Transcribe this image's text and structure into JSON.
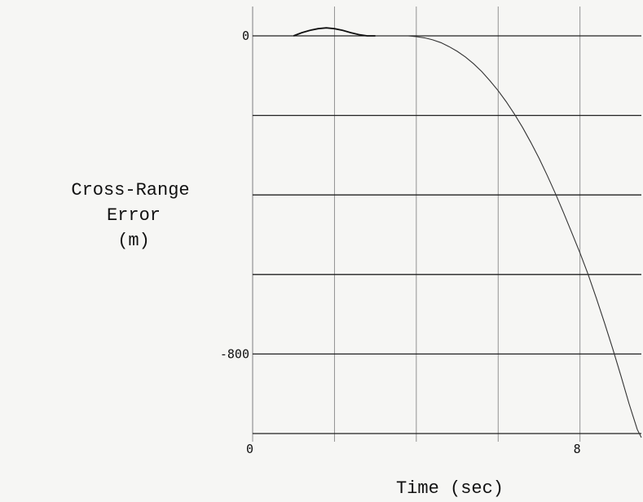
{
  "chart_data": {
    "type": "line",
    "title": "",
    "ylabel_lines": [
      "Cross-Range",
      "Error",
      "(m)"
    ],
    "xlabel": "Time (sec)",
    "x_tick_labels": [
      {
        "value": 0,
        "label": "0"
      },
      {
        "value": 8,
        "label": "8"
      }
    ],
    "y_tick_labels": [
      {
        "value": 0,
        "label": "0"
      },
      {
        "value": -800,
        "label": "-800"
      }
    ],
    "xlim": [
      0,
      9.5
    ],
    "ylim": [
      -1000,
      0
    ],
    "x_gridlines": [
      0,
      2,
      4,
      6,
      8
    ],
    "y_gridlines": [
      0,
      -200,
      -400,
      -600,
      -800,
      -1000
    ],
    "grid": true,
    "colors": {
      "line": "#333333",
      "grid": "#222222"
    },
    "series": [
      {
        "x": [
          1.0,
          1.2,
          1.4,
          1.6,
          1.8,
          2.0,
          2.2,
          2.4,
          2.6,
          2.8,
          3.0,
          3.2,
          3.4,
          3.6,
          3.8,
          4.0,
          4.2,
          4.4,
          4.6,
          4.8,
          5.0,
          5.2,
          5.4,
          5.6,
          5.8,
          6.0,
          6.2,
          6.4,
          6.6,
          6.8,
          7.0,
          7.2,
          7.4,
          7.6,
          7.8,
          8.0,
          8.2,
          8.4,
          8.6,
          8.8,
          9.0,
          9.2,
          9.4,
          9.5
        ],
        "y": [
          0,
          8,
          14,
          18,
          20,
          18,
          14,
          8,
          3,
          0,
          0,
          0,
          0,
          0,
          0,
          -2,
          -5,
          -10,
          -17,
          -27,
          -39,
          -53,
          -70,
          -90,
          -113,
          -138,
          -166,
          -197,
          -231,
          -268,
          -308,
          -351,
          -397,
          -445,
          -495,
          -546,
          -600,
          -660,
          -722,
          -787,
          -855,
          -925,
          -990,
          -1010
        ]
      }
    ]
  }
}
